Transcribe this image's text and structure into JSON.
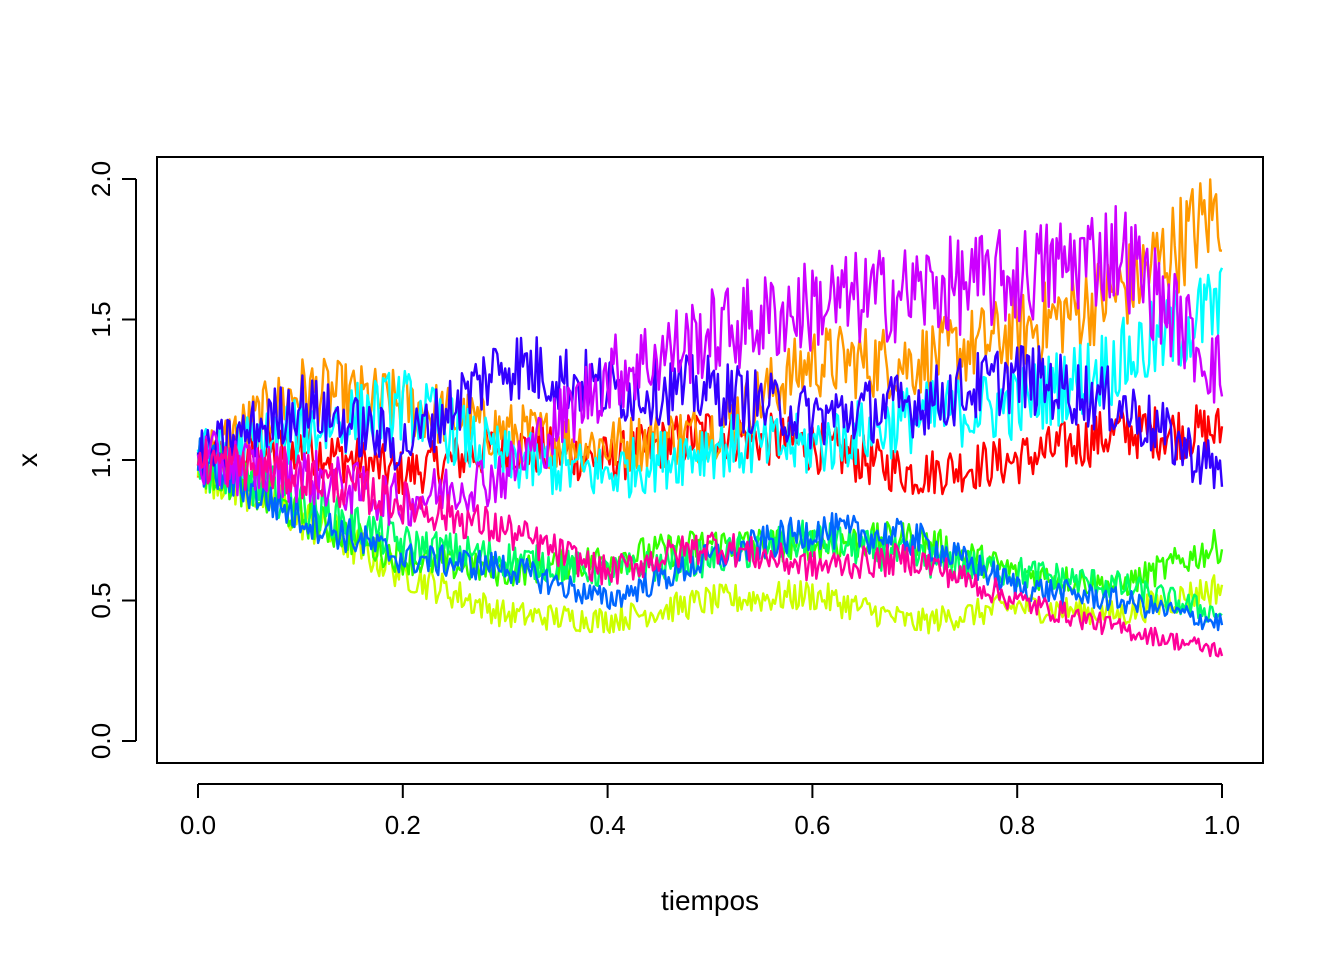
{
  "chart_data": {
    "type": "line",
    "title": "",
    "xlabel": "tiempos",
    "ylabel": "x",
    "xlim": [
      0,
      1
    ],
    "ylim": [
      0,
      2
    ],
    "x_ticks": [
      "0.0",
      "0.2",
      "0.4",
      "0.6",
      "0.8",
      "1.0"
    ],
    "y_ticks": [
      "0.0",
      "0.5",
      "1.0",
      "1.5",
      "2.0"
    ],
    "grid": false,
    "legend": "none",
    "series": [
      {
        "color": "#FF0000",
        "x": [
          0,
          0.1,
          0.2,
          0.3,
          0.4,
          0.5,
          0.6,
          0.7,
          0.8,
          0.9,
          1.0
        ],
        "values": [
          1.0,
          1.05,
          0.95,
          1.05,
          1.0,
          1.1,
          1.05,
          0.95,
          1.0,
          1.1,
          1.1
        ]
      },
      {
        "color": "#FF9900",
        "x": [
          0,
          0.1,
          0.2,
          0.3,
          0.4,
          0.5,
          0.6,
          0.7,
          0.8,
          0.9,
          1.0
        ],
        "values": [
          1.0,
          1.25,
          1.2,
          1.1,
          1.05,
          1.1,
          1.35,
          1.35,
          1.45,
          1.6,
          1.9
        ]
      },
      {
        "color": "#CCFF00",
        "x": [
          0,
          0.1,
          0.2,
          0.3,
          0.4,
          0.5,
          0.6,
          0.7,
          0.8,
          0.9,
          1.0
        ],
        "values": [
          1.0,
          0.8,
          0.6,
          0.45,
          0.43,
          0.5,
          0.52,
          0.42,
          0.48,
          0.45,
          0.55
        ]
      },
      {
        "color": "#33FF00",
        "x": [
          0,
          0.1,
          0.2,
          0.3,
          0.4,
          0.5,
          0.6,
          0.7,
          0.8,
          0.9,
          1.0
        ],
        "values": [
          1.0,
          0.8,
          0.65,
          0.6,
          0.65,
          0.7,
          0.7,
          0.72,
          0.6,
          0.55,
          0.7
        ]
      },
      {
        "color": "#00FF66",
        "x": [
          0,
          0.1,
          0.2,
          0.3,
          0.4,
          0.5,
          0.6,
          0.7,
          0.8,
          0.9,
          1.0
        ],
        "values": [
          1.0,
          0.85,
          0.7,
          0.65,
          0.6,
          0.65,
          0.72,
          0.65,
          0.6,
          0.55,
          0.45
        ]
      },
      {
        "color": "#00FFFF",
        "x": [
          0,
          0.1,
          0.2,
          0.3,
          0.4,
          0.5,
          0.6,
          0.7,
          0.8,
          0.9,
          1.0
        ],
        "values": [
          1.0,
          1.1,
          1.2,
          1.0,
          0.95,
          1.05,
          1.05,
          1.15,
          1.2,
          1.35,
          1.55
        ]
      },
      {
        "color": "#0066FF",
        "x": [
          0,
          0.1,
          0.2,
          0.3,
          0.4,
          0.5,
          0.6,
          0.7,
          0.8,
          0.9,
          1.0
        ],
        "values": [
          1.0,
          0.8,
          0.65,
          0.62,
          0.5,
          0.65,
          0.75,
          0.72,
          0.55,
          0.5,
          0.42
        ]
      },
      {
        "color": "#3300FF",
        "x": [
          0,
          0.1,
          0.2,
          0.3,
          0.4,
          0.5,
          0.6,
          0.7,
          0.8,
          0.9,
          1.0
        ],
        "values": [
          1.0,
          1.2,
          1.05,
          1.35,
          1.25,
          1.25,
          1.15,
          1.2,
          1.3,
          1.2,
          0.95
        ]
      },
      {
        "color": "#CC00FF",
        "x": [
          0,
          0.1,
          0.2,
          0.3,
          0.4,
          0.5,
          0.6,
          0.7,
          0.8,
          0.9,
          1.0
        ],
        "values": [
          1.0,
          0.95,
          0.85,
          0.95,
          1.3,
          1.45,
          1.55,
          1.6,
          1.65,
          1.75,
          1.3
        ]
      },
      {
        "color": "#FF0099",
        "x": [
          0,
          0.1,
          0.2,
          0.3,
          0.4,
          0.5,
          0.6,
          0.7,
          0.8,
          0.9,
          1.0
        ],
        "values": [
          1.0,
          0.95,
          0.85,
          0.75,
          0.6,
          0.7,
          0.62,
          0.65,
          0.5,
          0.4,
          0.32
        ]
      }
    ]
  }
}
